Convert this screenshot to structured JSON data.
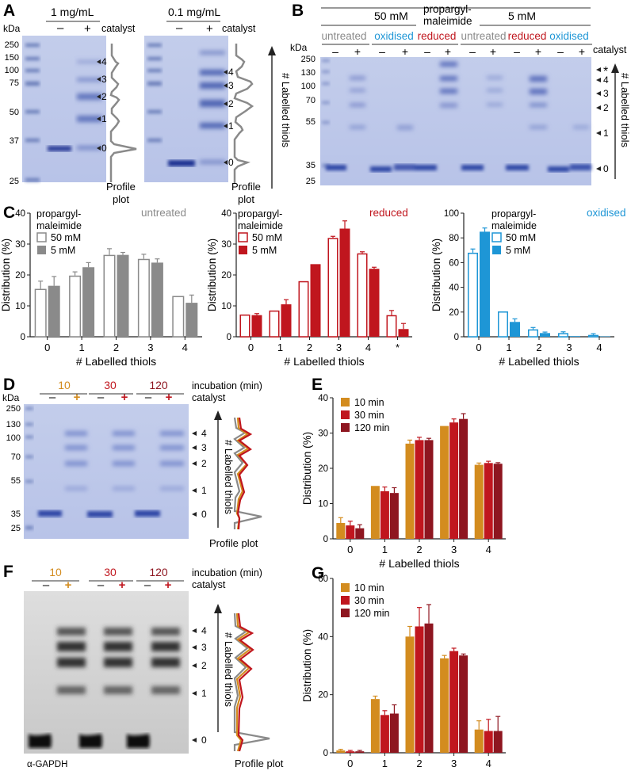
{
  "panel_labels": {
    "A": "A",
    "B": "B",
    "C": "C",
    "D": "D",
    "E": "E",
    "F": "F",
    "G": "G"
  },
  "panel_a": {
    "kda_label": "kDa",
    "markers": [
      "250",
      "150",
      "100",
      "75",
      "50",
      "37",
      "25"
    ],
    "gel1_title": "1 mg/mL",
    "gel2_title": "0.1 mg/mL",
    "minus": "–",
    "plus": "+",
    "catalyst": "catalyst",
    "bands": [
      "4",
      "3",
      "2",
      "1",
      "0"
    ],
    "profile_label_1": "Profile",
    "profile_label_2": "plot",
    "axis_label": "# Labelled thiols"
  },
  "panel_b": {
    "conc_50": "50 mM",
    "reagent_1": "propargyl-",
    "reagent_2": "maleimide",
    "conc_5": "5 mM",
    "conditions": [
      "untreated",
      "oxidised",
      "reduced",
      "untreated",
      "reduced",
      "oxidised"
    ],
    "condition_colors": {
      "untreated": "#8a8a8a",
      "oxidised": "#1e96d6",
      "reduced": "#c0161e"
    },
    "kda_label": "kDa",
    "markers": [
      "250",
      "130",
      "100",
      "70",
      "55",
      "35",
      "25"
    ],
    "catalyst": "catalyst",
    "bands": [
      "*",
      "4",
      "3",
      "2",
      "1",
      "0"
    ],
    "axis_label": "# Labelled thiols"
  },
  "panel_c": {
    "charts": [
      {
        "key": "untreated",
        "title": "untreated",
        "color": "#8a8a8a",
        "legend_title_1": "propargyl-",
        "legend_title_2": "maleimide",
        "legend_50": "50 mM",
        "legend_5": "5 mM"
      },
      {
        "key": "reduced",
        "title": "reduced",
        "color": "#c0161e",
        "legend_title_1": "propargyl-",
        "legend_title_2": "maleimide",
        "legend_50": "50 mM",
        "legend_5": "5 mM"
      },
      {
        "key": "oxidised",
        "title": "oxidised",
        "color": "#1e96d6",
        "legend_title_1": "propargyl-",
        "legend_title_2": "maleimide",
        "legend_50": "50 mM",
        "legend_5": "5 mM"
      }
    ]
  },
  "panel_d": {
    "times": [
      "10",
      "30",
      "120"
    ],
    "incubation": "incubation (min)",
    "catalyst": "catalyst",
    "kda_label": "kDa",
    "markers": [
      "250",
      "130",
      "100",
      "70",
      "55",
      "35",
      "25"
    ],
    "bands": [
      "4",
      "3",
      "2",
      "1",
      "0"
    ],
    "axis_label": "# Labelled thiols",
    "profile_label": "Profile plot"
  },
  "panel_f": {
    "times": [
      "10",
      "30",
      "120"
    ],
    "incubation": "incubation (min)",
    "catalyst": "catalyst",
    "bands": [
      "4",
      "3",
      "2",
      "1",
      "0"
    ],
    "axis_label": "# Labelled thiols",
    "profile_label": "Profile plot",
    "antibody": "α-GAPDH"
  },
  "time_colors": [
    "#d38c1f",
    "#c0161e",
    "#8e1620"
  ],
  "chart_data": [
    {
      "id": "C-untreated",
      "type": "bar",
      "title": "untreated",
      "categories": [
        "0",
        "1",
        "2",
        "3",
        "4"
      ],
      "series": [
        {
          "name": "50 mM",
          "style": "open",
          "values": [
            15.5,
            19.8,
            26.5,
            25.2,
            13.2
          ],
          "errors": [
            2.5,
            1.2,
            2.0,
            1.5,
            0
          ]
        },
        {
          "name": "5 mM",
          "style": "filled",
          "values": [
            16.5,
            22.5,
            26.5,
            24.0,
            11.0
          ],
          "errors": [
            3.0,
            1.5,
            0.8,
            1.2,
            2.5
          ]
        }
      ],
      "xlabel": "# Labelled thiols",
      "ylabel": "Distribution (%)",
      "ylim": [
        0,
        40
      ],
      "yticks": [
        0,
        10,
        20,
        30,
        40
      ]
    },
    {
      "id": "C-reduced",
      "type": "bar",
      "title": "reduced",
      "categories": [
        "0",
        "1",
        "2",
        "3",
        "4",
        "*"
      ],
      "series": [
        {
          "name": "50 mM",
          "style": "open",
          "values": [
            7.2,
            8.5,
            18.0,
            32.0,
            27.0,
            7.0
          ],
          "errors": [
            0,
            0,
            0,
            0.5,
            0.5,
            1.5
          ]
        },
        {
          "name": "5 mM",
          "style": "filled",
          "values": [
            7.0,
            10.5,
            23.5,
            35.0,
            22.0,
            2.5
          ],
          "errors": [
            0.5,
            1.5,
            0,
            2.5,
            0.5,
            1.8
          ]
        }
      ],
      "xlabel": "# Labelled thiols",
      "ylabel": "Distribution (%)",
      "ylim": [
        0,
        40
      ],
      "yticks": [
        0,
        10,
        20,
        30,
        40
      ]
    },
    {
      "id": "C-oxidised",
      "type": "bar",
      "title": "oxidised",
      "categories": [
        "0",
        "1",
        "2",
        "3",
        "4"
      ],
      "series": [
        {
          "name": "50 mM",
          "style": "open",
          "values": [
            68.0,
            20.5,
            6.0,
            3.0,
            1.5
          ],
          "errors": [
            3.0,
            0,
            1.5,
            1.0,
            1.0
          ]
        },
        {
          "name": "5 mM",
          "style": "filled",
          "values": [
            85.0,
            12.0,
            3.0,
            0.5,
            0.3
          ],
          "errors": [
            3.0,
            2.5,
            0.8,
            0,
            0
          ]
        }
      ],
      "xlabel": "# Labelled thiols",
      "ylabel": "Distribution (%)",
      "ylim": [
        0,
        100
      ],
      "yticks": [
        0,
        20,
        40,
        60,
        80,
        100
      ]
    },
    {
      "id": "E",
      "type": "bar",
      "categories": [
        "0",
        "1",
        "2",
        "3",
        "4"
      ],
      "series": [
        {
          "name": "10 min",
          "values": [
            4.5,
            15.0,
            27.0,
            32.0,
            21.0
          ],
          "errors": [
            1.5,
            0,
            1.0,
            0,
            0.5
          ]
        },
        {
          "name": "30 min",
          "values": [
            3.8,
            13.5,
            28.0,
            33.0,
            21.5
          ],
          "errors": [
            1.2,
            1.2,
            0.8,
            1.0,
            0.5
          ]
        },
        {
          "name": "120 min",
          "values": [
            3.0,
            13.0,
            28.0,
            34.0,
            21.3
          ],
          "errors": [
            1.0,
            1.5,
            0.5,
            1.5,
            0.3
          ]
        }
      ],
      "xlabel": "# Labelled thiols",
      "ylabel": "Distribution (%)",
      "ylim": [
        0,
        40
      ],
      "yticks": [
        0,
        10,
        20,
        30,
        40
      ]
    },
    {
      "id": "G",
      "type": "bar",
      "categories": [
        "0",
        "1",
        "2",
        "3",
        "4"
      ],
      "series": [
        {
          "name": "10 min",
          "values": [
            0.8,
            18.5,
            40.0,
            32.5,
            8.0
          ],
          "errors": [
            0.4,
            1.0,
            3.5,
            1.0,
            3.0
          ]
        },
        {
          "name": "30 min",
          "values": [
            0.5,
            13.0,
            43.5,
            35.0,
            7.5
          ],
          "errors": [
            0.3,
            1.5,
            6.5,
            1.0,
            4.0
          ]
        },
        {
          "name": "120 min",
          "values": [
            0.5,
            13.5,
            44.5,
            33.5,
            7.5
          ],
          "errors": [
            0.3,
            3.0,
            6.5,
            0.5,
            5.0
          ]
        }
      ],
      "xlabel": "# Labelled thiols",
      "ylabel": "Distribution (%)",
      "ylim": [
        0,
        60
      ],
      "yticks": [
        0,
        20,
        40,
        60
      ]
    }
  ]
}
